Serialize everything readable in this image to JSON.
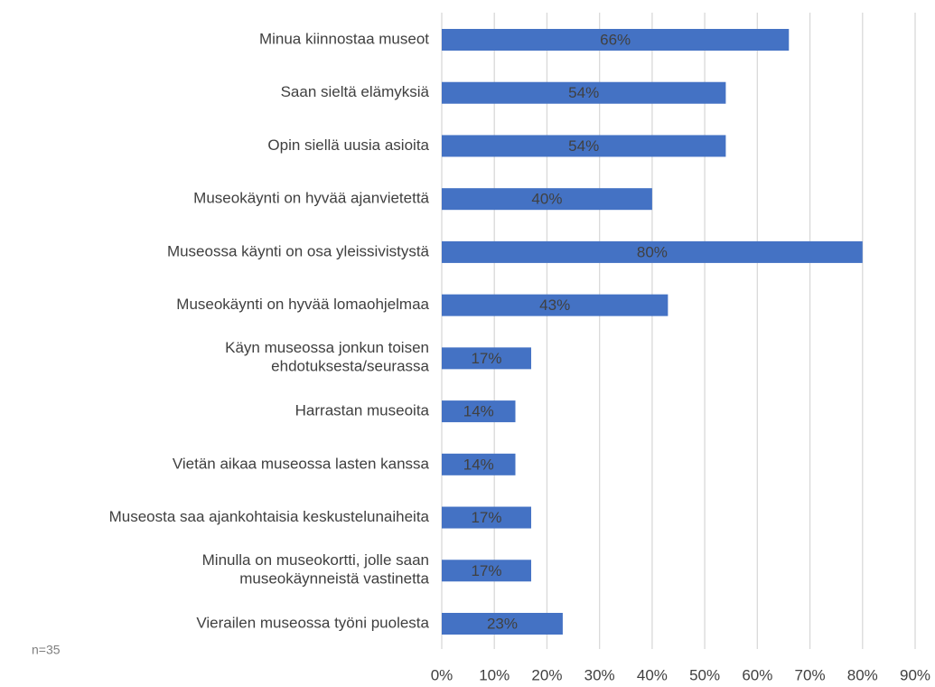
{
  "chart_data": {
    "type": "hbar",
    "annotation": "n=35",
    "categories": [
      "Minua kiinnostaa museot",
      "Saan sieltä elämyksiä",
      "Opin siellä uusia asioita",
      "Museokäynti on hyvää ajanvietettä",
      "Museossa käynti on osa yleissivistystä",
      "Museokäynti on hyvää lomaohjelmaa",
      "Käyn museossa jonkun toisen\nehdotuksesta/seurassa",
      "Harrastan museoita",
      "Vietän aikaa museossa lasten kanssa",
      "Museosta saa ajankohtaisia keskustelunaiheita",
      "Minulla on museokortti, jolle saan\nmuseokäynneistä vastinetta",
      "Vierailen museossa työni puolesta"
    ],
    "values": [
      66,
      54,
      54,
      40,
      80,
      43,
      17,
      14,
      14,
      17,
      17,
      23
    ],
    "value_labels": [
      "66%",
      "54%",
      "54%",
      "40%",
      "80%",
      "43%",
      "17%",
      "14%",
      "14%",
      "17%",
      "17%",
      "23%"
    ],
    "color": "#4472c4",
    "xlim": [
      0,
      90
    ],
    "xticks": [
      {
        "value": 0,
        "label": "0%"
      },
      {
        "value": 10,
        "label": "10%"
      },
      {
        "value": 20,
        "label": "20%"
      },
      {
        "value": 30,
        "label": "30%"
      },
      {
        "value": 40,
        "label": "40%"
      },
      {
        "value": 50,
        "label": "50%"
      },
      {
        "value": 60,
        "label": "60%"
      },
      {
        "value": 70,
        "label": "70%"
      },
      {
        "value": 80,
        "label": "80%"
      },
      {
        "value": 90,
        "label": "90%"
      }
    ],
    "grid": true
  }
}
